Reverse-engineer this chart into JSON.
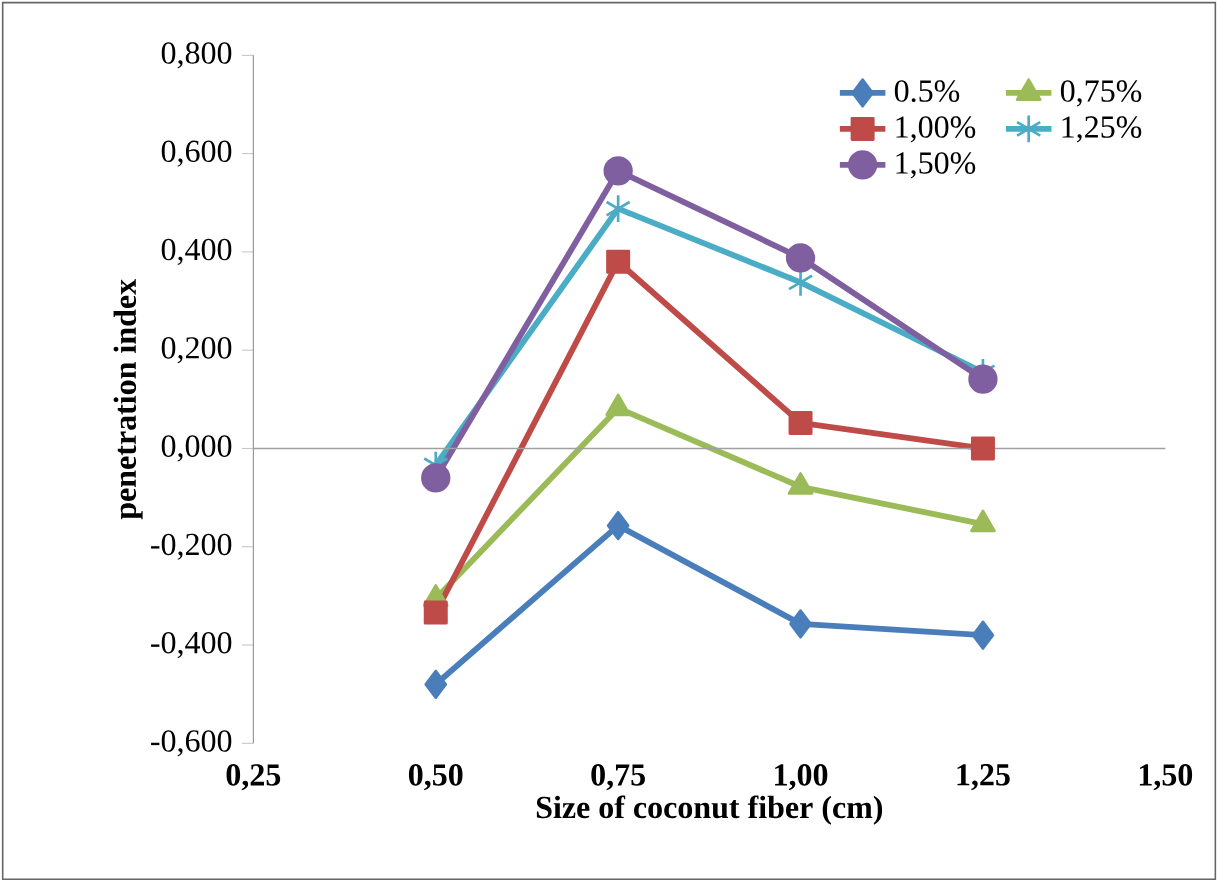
{
  "chart_data": {
    "type": "line",
    "xlabel": "Size of coconut fiber (cm)",
    "ylabel": "penetration index",
    "x": [
      0.5,
      0.75,
      1.0,
      1.25
    ],
    "xlim": [
      0.25,
      1.5
    ],
    "xticks": [
      {
        "value": 0.25,
        "label": "0,25"
      },
      {
        "value": 0.5,
        "label": "0,50"
      },
      {
        "value": 0.75,
        "label": "0,75"
      },
      {
        "value": 1.0,
        "label": "1,00"
      },
      {
        "value": 1.25,
        "label": "1,25"
      },
      {
        "value": 1.5,
        "label": "1,50"
      }
    ],
    "ylim": [
      -0.6,
      0.8
    ],
    "yticks": [
      {
        "value": -0.6,
        "label": "-0,600"
      },
      {
        "value": -0.4,
        "label": "-0,400"
      },
      {
        "value": -0.2,
        "label": "-0,200"
      },
      {
        "value": 0,
        "label": "0,000"
      },
      {
        "value": 0.2,
        "label": "0,200"
      },
      {
        "value": 0.4,
        "label": "0,400"
      },
      {
        "value": 0.6,
        "label": "0,600"
      },
      {
        "value": 0.8,
        "label": "0,800"
      }
    ],
    "legend": "top right",
    "ref_lines": [
      {
        "axis": "y",
        "value": 0,
        "color": "#a0a0a0"
      }
    ],
    "series": [
      {
        "name": "0.5%",
        "color": "#4a7ebb",
        "marker": "diamond",
        "values": [
          -0.48,
          -0.157,
          -0.357,
          -0.38
        ]
      },
      {
        "name": "0,75%",
        "color": "#9bbb59",
        "marker": "triangle",
        "values": [
          -0.306,
          0.082,
          -0.078,
          -0.154
        ]
      },
      {
        "name": "1,00%",
        "color": "#be4b48",
        "marker": "square",
        "values": [
          -0.334,
          0.38,
          0.052,
          0
        ]
      },
      {
        "name": "1,25%",
        "color": "#4bacc6",
        "marker": "cross",
        "values": [
          -0.034,
          0.488,
          0.338,
          0.155
        ]
      },
      {
        "name": "1,50%",
        "color": "#7f5f9f",
        "marker": "circle",
        "values": [
          -0.06,
          0.565,
          0.388,
          0.141
        ]
      }
    ]
  }
}
